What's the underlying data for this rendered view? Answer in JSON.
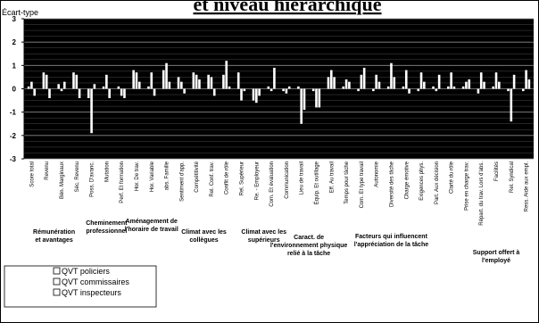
{
  "chart_data": {
    "type": "bar",
    "title": "et niveau hiérarchique",
    "ylabel": "Écart-type",
    "ylim": [
      -3,
      3
    ],
    "yticks": [
      3,
      2,
      1,
      0,
      -1,
      -2,
      -3
    ],
    "grid": true,
    "plot_background": "#000000",
    "categories": [
      "Score total",
      "Revenu",
      "Bén. Marginaux",
      "Séc. Revenu",
      "Poss. D'avanc.",
      "Mutation",
      "Perf. Et formation",
      "Hor. De trav.",
      "Hor. Variable",
      "abs. Famille",
      "Sentiment d'app.",
      "Compétitivité",
      "Rel. Conf. trav.",
      "Conflit de rôle",
      "Rel. Supérieur",
      "Re. - Employeur",
      "Com. Et évaluation",
      "Communication",
      "Lieu de travail",
      "Équip. Et outillage",
      "Eff. Au travail",
      "Temps pour tâche",
      "Com. Et type travail",
      "Autonomie",
      "Diversité des tâche",
      "Charge émotive",
      "Exigences phys.",
      "Part. Aux décision",
      "Clarté du rôle",
      "Prise en charge trav.",
      "Répart. du trav. Lors d'abs.",
      "Facilités",
      "Rel. Syndical",
      "Ress. Aide aux empl."
    ],
    "series": [
      {
        "name": "QVT policiers",
        "color": "#ffffff",
        "values": [
          0.1,
          0.7,
          0.2,
          0.7,
          -0.4,
          0.1,
          0.1,
          0.8,
          0.1,
          0.8,
          0.5,
          0.7,
          0.6,
          0.6,
          0.7,
          -0.5,
          0.1,
          -0.1,
          0.1,
          -0.1,
          0.5,
          0.1,
          -0.1,
          -0.1,
          0.1,
          0.1,
          -0.1,
          0.1,
          0.1,
          0.1,
          -0.2,
          0.1,
          -0.1,
          -0.1
        ]
      },
      {
        "name": "QVT commissaires",
        "color": "#ffffff",
        "values": [
          0.3,
          0.6,
          -0.1,
          0.6,
          -1.9,
          0.6,
          -0.3,
          0.7,
          0.7,
          1.1,
          0.3,
          0.6,
          0.5,
          1.2,
          -0.5,
          -0.6,
          -0.1,
          -0.2,
          -1.5,
          -0.8,
          0.8,
          0.4,
          0.6,
          0.6,
          1.1,
          0.8,
          0.7,
          -0.1,
          0.7,
          0.3,
          0.7,
          0.7,
          -1.4,
          0.8
        ]
      },
      {
        "name": "QVT inspecteurs",
        "color": "#ffffff",
        "values": [
          -0.3,
          -0.4,
          0.3,
          -0.4,
          0.2,
          -0.4,
          -0.4,
          0.3,
          -0.3,
          0.3,
          -0.2,
          0.4,
          -0.3,
          0.1,
          -0.1,
          -0.3,
          0.9,
          0.1,
          -0.9,
          -0.8,
          0.5,
          0.3,
          0.9,
          0.3,
          0.5,
          -0.2,
          0.3,
          0.6,
          0.1,
          0.4,
          0.3,
          0.3,
          0.6,
          0.4
        ]
      }
    ],
    "groups": [
      {
        "lines": [
          "Rémunération",
          "et avantages"
        ],
        "start": 0,
        "end": 3
      },
      {
        "lines": [
          "Cheminement",
          "professionnel"
        ],
        "start": 4,
        "end": 6
      },
      {
        "lines": [
          "Aménagement  de",
          "l'horaire de travail"
        ],
        "start": 7,
        "end": 9
      },
      {
        "lines": [
          "Climat avec les",
          "collègues"
        ],
        "start": 10,
        "end": 13
      },
      {
        "lines": [
          "Climat avec les",
          "supérieurs"
        ],
        "start": 14,
        "end": 17
      },
      {
        "lines": [
          "Caract. de",
          "l'environnement physique",
          "relié à la tâche"
        ],
        "start": 18,
        "end": 19
      },
      {
        "lines": [
          "Facteurs qui influencent",
          "l'appréciation de la tâche"
        ],
        "start": 20,
        "end": 28
      },
      {
        "lines": [
          "Support offert à",
          "l'employé"
        ],
        "start": 29,
        "end": 33
      }
    ],
    "legend": {
      "position": "bottom-left",
      "entries": [
        "QVT policiers",
        "QVT commissaires",
        "QVT inspecteurs"
      ]
    }
  }
}
